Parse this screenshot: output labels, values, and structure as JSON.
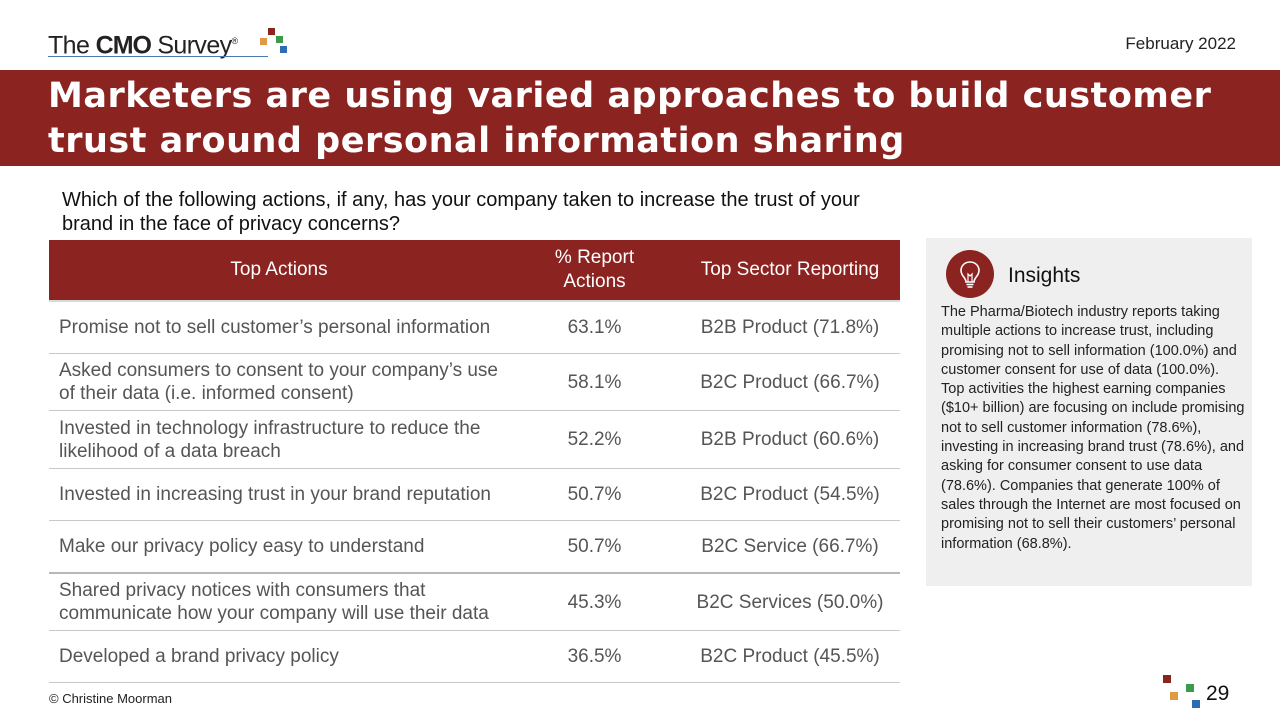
{
  "header": {
    "logo_prefix": "The",
    "logo_bold": "CMO",
    "logo_suffix": "Survey",
    "logo_reg": "®",
    "date": "February 2022"
  },
  "title": "Marketers are using varied approaches to build customer trust around personal information sharing",
  "question": "Which of the following actions, if any, has your company taken to increase the trust of your brand in the face of privacy concerns?",
  "table": {
    "headers": [
      "Top Actions",
      "% Report Actions",
      "Top Sector Reporting"
    ],
    "rows": [
      {
        "action": "Promise not to sell customer’s personal information",
        "pct": "63.1%",
        "sector": "B2B Product (71.8%)"
      },
      {
        "action": "Asked consumers to consent to your company’s use of their data (i.e. informed consent)",
        "pct": "58.1%",
        "sector": "B2C Product (66.7%)"
      },
      {
        "action": "Invested in technology infrastructure to reduce the likelihood of a data breach",
        "pct": "52.2%",
        "sector": "B2B Product (60.6%)"
      },
      {
        "action": "Invested in increasing trust in your brand reputation",
        "pct": "50.7%",
        "sector": "B2C Product (54.5%)"
      },
      {
        "action": "Make our privacy policy easy to understand",
        "pct": "50.7%",
        "sector": "B2C Service (66.7%)"
      },
      {
        "action": "Shared privacy notices with consumers that communicate how your company will use their data",
        "pct": "45.3%",
        "sector": "B2C Services (50.0%)"
      },
      {
        "action": "Developed a brand privacy policy",
        "pct": "36.5%",
        "sector": "B2C Product (45.5%)"
      }
    ]
  },
  "insights": {
    "icon": "lightbulb-icon",
    "title": "Insights",
    "body": "The Pharma/Biotech industry reports taking multiple actions to increase trust, including promising not to sell information (100.0%) and customer consent for use of data (100.0%). Top activities the highest earning companies ($10+ billion) are focusing on include promising not to sell customer information (78.6%), investing in increasing brand trust (78.6%), and asking for consumer consent to use data (78.6%). Companies that generate 100% of sales through the Internet are most focused on promising not to sell their customers’ personal information (68.8%)."
  },
  "footer": {
    "copyright": "© Christine Moorman",
    "page": "29"
  },
  "colors": {
    "brand_red": "#8b2321",
    "sq_red": "#8b2321",
    "sq_orange": "#e09a44",
    "sq_green": "#3b9a4c",
    "sq_blue": "#2e6db4"
  }
}
